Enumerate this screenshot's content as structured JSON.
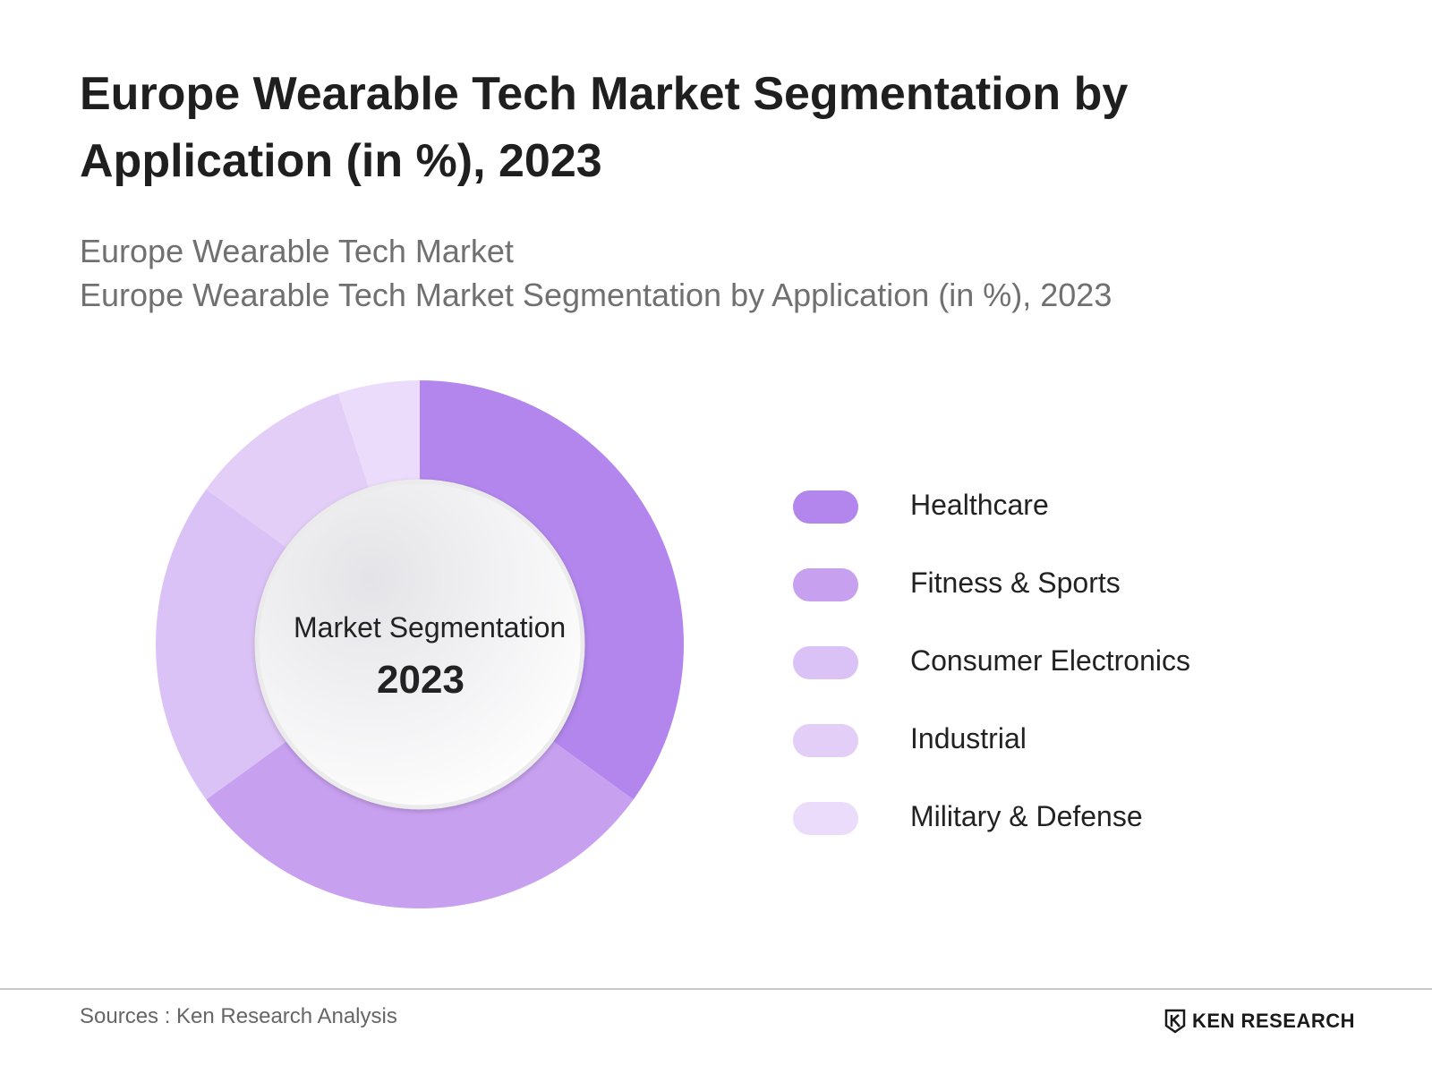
{
  "title": "Europe Wearable Tech Market Segmentation by Application (in %), 2023",
  "subtitle_line1": "Europe Wearable Tech Market",
  "subtitle_line2": "Europe Wearable Tech Market Segmentation by Application (in %), 2023",
  "center_label": "Market Segmentation",
  "center_year": "2023",
  "source": "Sources : Ken Research Analysis",
  "logo_text": "KEN RESEARCH",
  "chart_data": {
    "type": "pie",
    "variant": "donut",
    "title": "Europe Wearable Tech Market Segmentation by Application (in %), 2023",
    "categories": [
      "Healthcare",
      "Fitness & Sports",
      "Consumer Electronics",
      "Industrial",
      "Military & Defense"
    ],
    "values": [
      35,
      30,
      20,
      10,
      5
    ],
    "colors": [
      "#b286ec",
      "#c8a0f0",
      "#dbc2f6",
      "#e3cef8",
      "#ebdcfb"
    ],
    "legend_position": "right"
  }
}
